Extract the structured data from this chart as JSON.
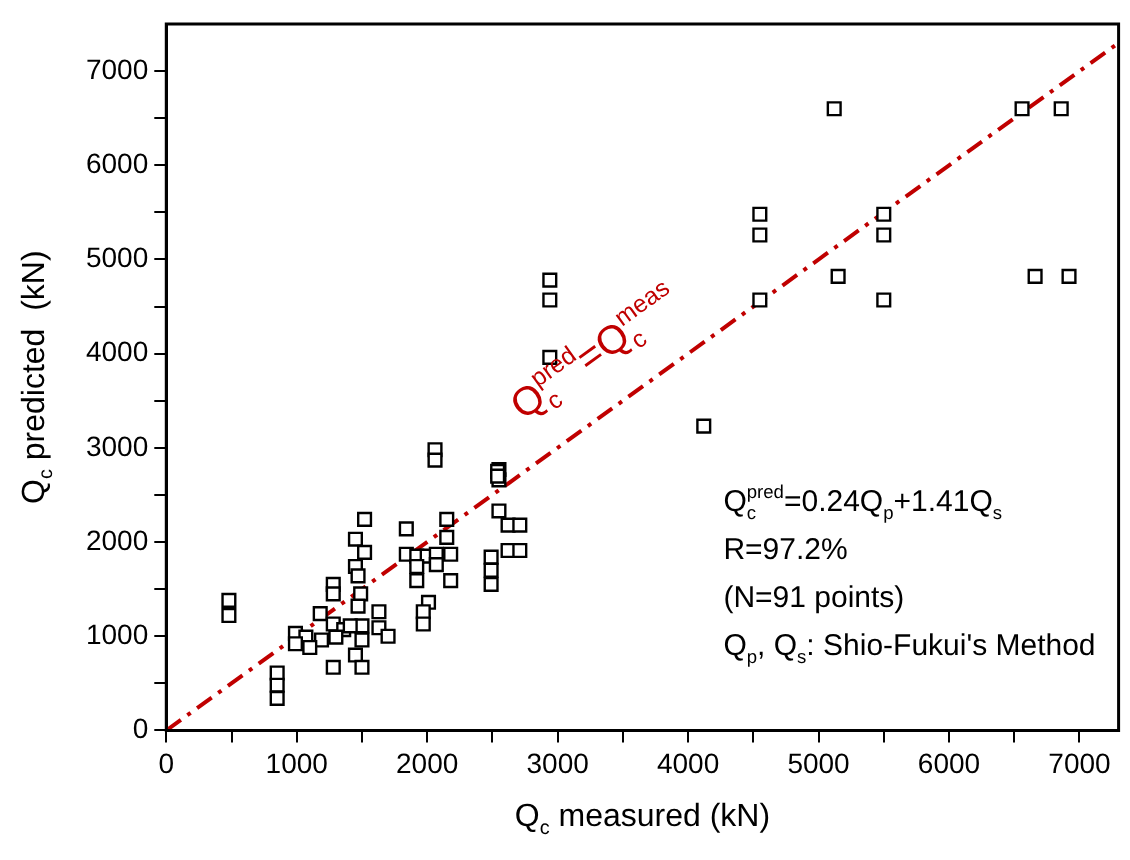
{
  "chart_data": {
    "type": "scatter",
    "xlabel": "Q$_{c}$ measured (kN)",
    "ylabel": "Q$_{c}$ predicted  (kN)",
    "marker": "square",
    "grid": false,
    "legend": false,
    "xlim": [
      0,
      7300
    ],
    "ylim": [
      0,
      7500
    ],
    "xticks": [
      0,
      {
        "value": 500,
        "label": null
      },
      1000,
      {
        "value": 1500,
        "label": null
      },
      2000,
      {
        "value": 2500,
        "label": null
      },
      3000,
      {
        "value": 3500,
        "label": null
      },
      4000,
      {
        "value": 4500,
        "label": null
      },
      5000,
      {
        "value": 5500,
        "label": null
      },
      6000,
      {
        "value": 6500,
        "label": null
      },
      7000
    ],
    "yticks": [
      0,
      {
        "value": 500,
        "label": null
      },
      1000,
      {
        "value": 1500,
        "label": null
      },
      2000,
      {
        "value": 2500,
        "label": null
      },
      3000,
      {
        "value": 3500,
        "label": null
      },
      4000,
      {
        "value": 4500,
        "label": null
      },
      5000,
      {
        "value": 5500,
        "label": null
      },
      6000,
      {
        "value": 6500,
        "label": null
      },
      7000
    ],
    "series": [
      {
        "color": "#000000",
        "x": [
          480,
          480,
          850,
          850,
          850,
          2060,
          2060,
          2550,
          2550,
          1520,
          1840,
          2150,
          2550,
          2620,
          2710,
          1450,
          1520,
          1840,
          1920,
          2000,
          2070,
          2180,
          2150,
          2070,
          1920,
          1920,
          2180,
          2490,
          2490,
          2490,
          2620,
          2710,
          1450,
          1470,
          1280,
          1280,
          1490,
          1470,
          1630,
          2010,
          1970,
          1970,
          1180,
          1280,
          1360,
          1500,
          1630,
          1700,
          990,
          1070,
          1190,
          990,
          1100,
          1300,
          1410,
          1500,
          1450,
          1500,
          1280,
          2940,
          2940,
          2940,
          2540,
          2540,
          4120,
          4550,
          4550,
          4550,
          5150,
          5120,
          5500,
          5500,
          5500,
          6560,
          6860,
          6660,
          6920
        ],
        "values": [
          1380,
          1220,
          610,
          480,
          340,
          2980,
          2870,
          2770,
          2660,
          2240,
          2140,
          2240,
          2330,
          2180,
          2180,
          2030,
          1890,
          1870,
          1850,
          1850,
          1870,
          1870,
          2050,
          1760,
          1740,
          1590,
          1590,
          1840,
          1700,
          1550,
          1910,
          1910,
          1740,
          1640,
          1550,
          1450,
          1450,
          1320,
          1260,
          1360,
          1260,
          1130,
          1240,
          1130,
          1070,
          1110,
          1090,
          1000,
          1030,
          990,
          960,
          920,
          880,
          990,
          1110,
          960,
          800,
          670,
          670,
          4780,
          4570,
          3960,
          2750,
          2700,
          3230,
          5480,
          5260,
          4570,
          4820,
          6600,
          5480,
          5260,
          4570,
          6600,
          6600,
          4820,
          4820
        ]
      },
      {
        "type": "line",
        "color": "#c00000",
        "line_style": "dashed",
        "marker": "none",
        "x": [
          0,
          7300
        ],
        "values": [
          0,
          7300
        ]
      }
    ],
    "annotations": [
      "Q$_{c}$$^{pred}$=Q$_{c}$$^{meas}$",
      "Q$_{c}$$^{pred}$=0.24Q$_{p}$+1.41Q$_{s}$",
      "R=97.2%",
      "(N=91 points)",
      "Q$_{p}$, Q$_{s}$: Shio-Fukui's Method"
    ]
  }
}
